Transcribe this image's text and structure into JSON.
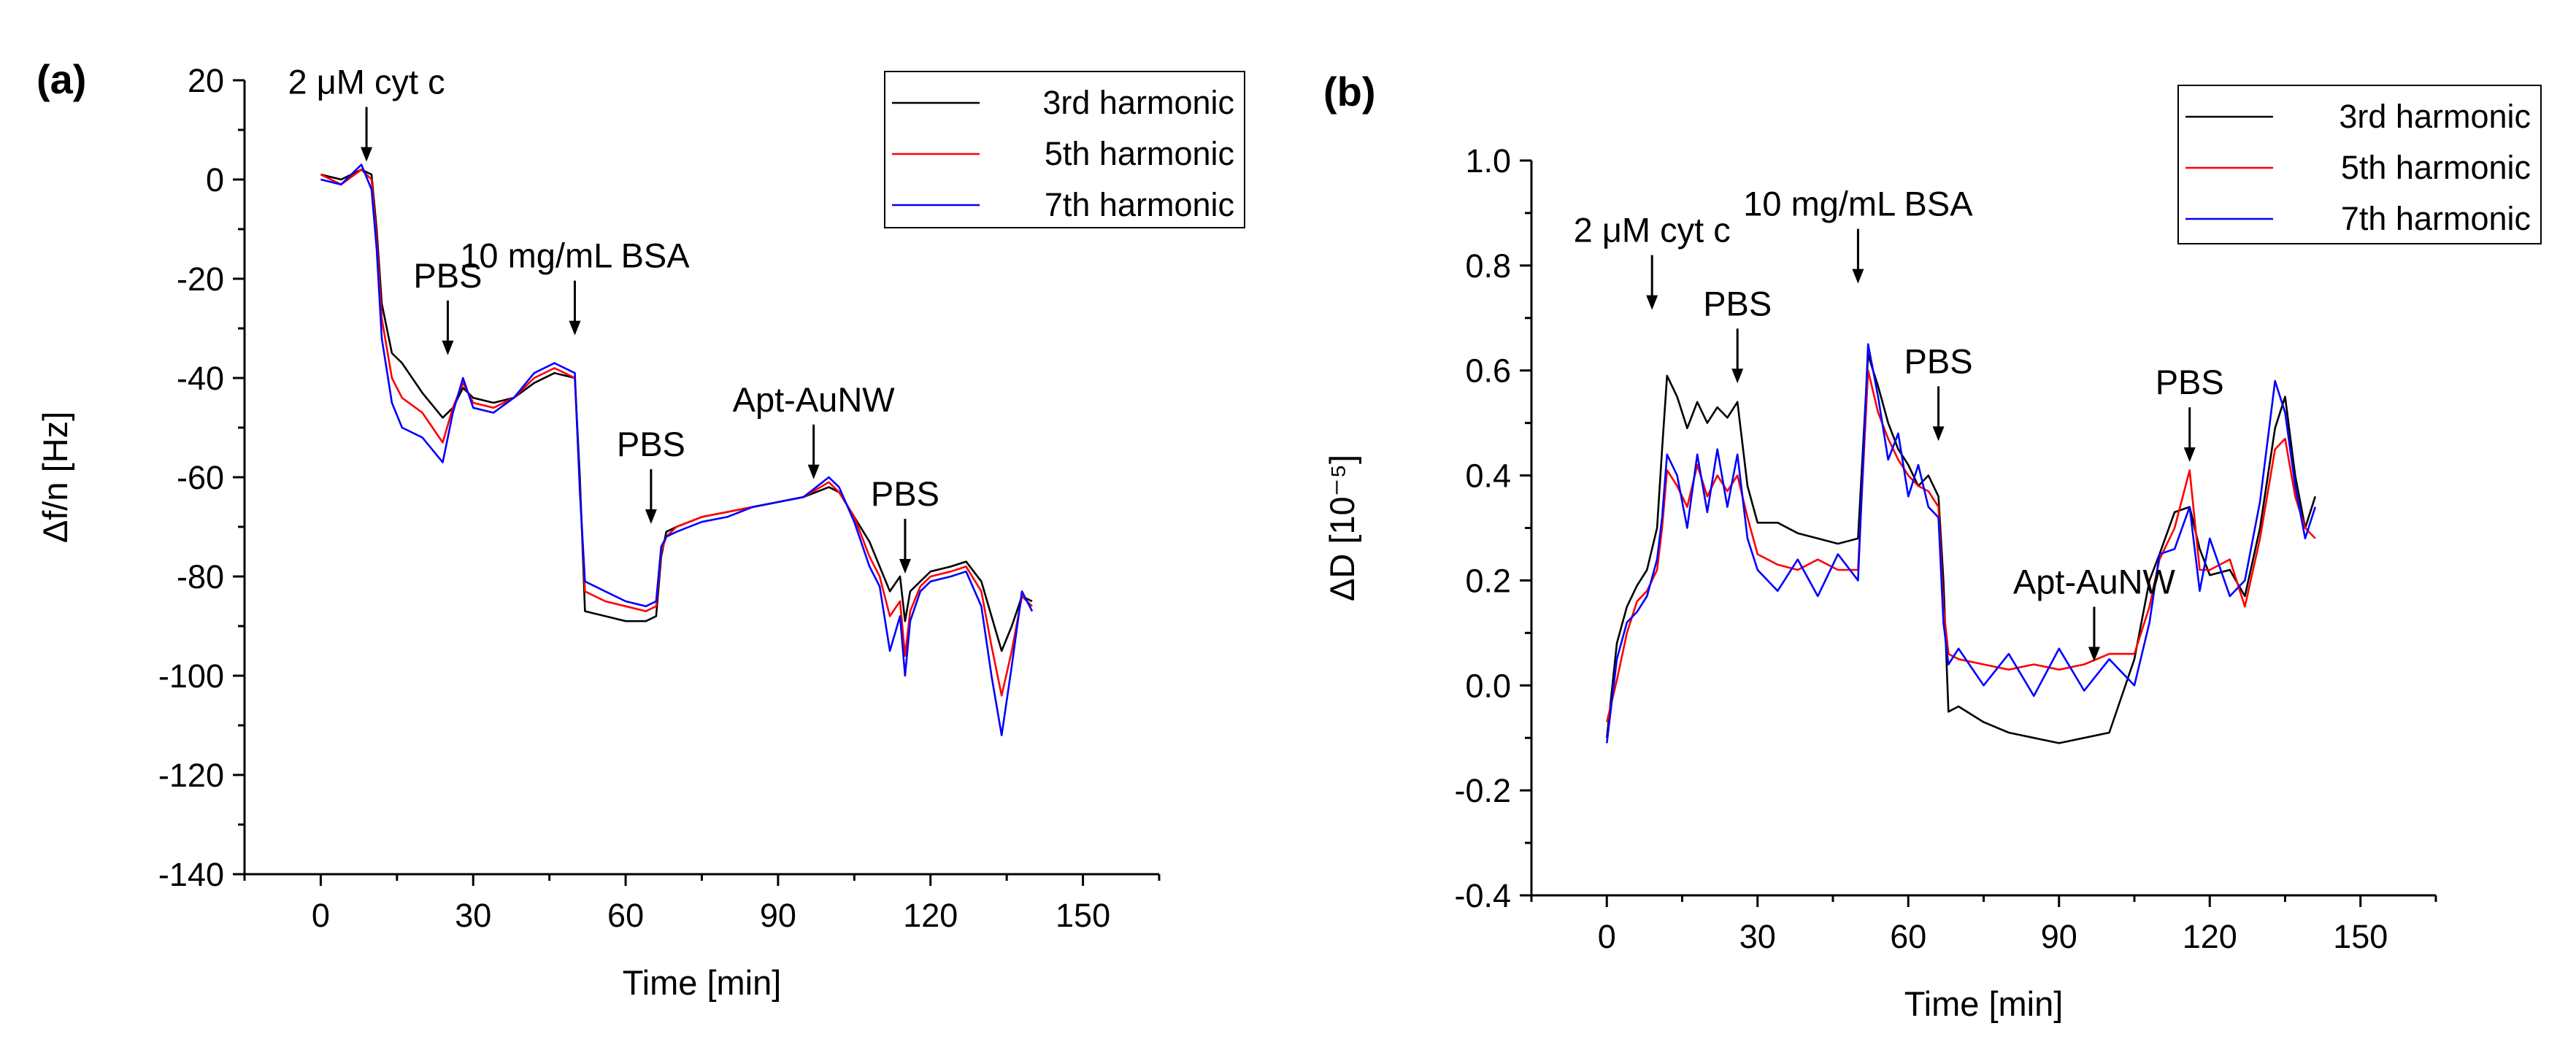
{
  "chart_data": [
    {
      "type": "line",
      "panel_label": "(a)",
      "xlabel": "Time [min]",
      "ylabel": "Δf/n [Hz]",
      "xlim": [
        -15,
        165
      ],
      "ylim": [
        -140,
        20
      ],
      "xticks": [
        0,
        30,
        60,
        90,
        120,
        150
      ],
      "yticks": [
        20,
        0,
        -20,
        -40,
        -60,
        -80,
        -100,
        -120,
        -140
      ],
      "legend": {
        "position": "top-right",
        "entries": [
          "3rd harmonic",
          "5th harmonic",
          "7th harmonic"
        ]
      },
      "annotations": [
        {
          "label": "2 μM cyt c",
          "x": 9,
          "y_tip": 3
        },
        {
          "label": "PBS",
          "x": 25,
          "y_tip": -36
        },
        {
          "label": "10 mg/mL BSA",
          "x": 50,
          "y_tip": -32
        },
        {
          "label": "PBS",
          "x": 65,
          "y_tip": -70
        },
        {
          "label": "Apt-AuNW",
          "x": 97,
          "y_tip": -61
        },
        {
          "label": "PBS",
          "x": 115,
          "y_tip": -80
        }
      ],
      "series": [
        {
          "name": "3rd harmonic",
          "color": "#000000",
          "x": [
            0,
            4,
            8,
            10,
            11,
            12,
            14,
            16,
            20,
            24,
            26,
            28,
            30,
            34,
            38,
            42,
            46,
            50,
            51,
            52,
            56,
            60,
            64,
            66,
            67,
            68,
            70,
            75,
            80,
            85,
            90,
            95,
            100,
            102,
            105,
            108,
            110,
            112,
            114,
            115,
            116,
            118,
            120,
            124,
            127,
            130,
            132,
            134,
            136,
            138,
            140
          ],
          "y": [
            1,
            0,
            2,
            1,
            -10,
            -25,
            -35,
            -37,
            -43,
            -48,
            -46,
            -42,
            -44,
            -45,
            -44,
            -41,
            -39,
            -40,
            -60,
            -87,
            -88,
            -89,
            -89,
            -88,
            -76,
            -71,
            -70,
            -68,
            -67,
            -66,
            -65,
            -64,
            -62,
            -63,
            -68,
            -73,
            -78,
            -83,
            -80,
            -89,
            -83,
            -81,
            -79,
            -78,
            -77,
            -81,
            -88,
            -95,
            -90,
            -84,
            -85
          ]
        },
        {
          "name": "5th harmonic",
          "color": "#ff0000",
          "x": [
            0,
            4,
            8,
            10,
            11,
            12,
            14,
            16,
            20,
            24,
            26,
            28,
            30,
            34,
            38,
            42,
            46,
            50,
            51,
            52,
            56,
            60,
            64,
            66,
            67,
            68,
            70,
            75,
            80,
            85,
            90,
            95,
            100,
            102,
            105,
            108,
            110,
            112,
            114,
            115,
            116,
            118,
            120,
            124,
            127,
            130,
            132,
            134,
            136,
            138,
            140
          ],
          "y": [
            1,
            -1,
            2,
            0,
            -12,
            -28,
            -40,
            -44,
            -47,
            -53,
            -46,
            -41,
            -45,
            -46,
            -44,
            -40,
            -38,
            -40,
            -62,
            -83,
            -85,
            -86,
            -87,
            -86,
            -75,
            -72,
            -70,
            -68,
            -67,
            -66,
            -65,
            -64,
            -61,
            -63,
            -68,
            -76,
            -80,
            -88,
            -85,
            -96,
            -87,
            -82,
            -80,
            -79,
            -78,
            -83,
            -94,
            -104,
            -95,
            -84,
            -86
          ]
        },
        {
          "name": "7th harmonic",
          "color": "#0000ff",
          "x": [
            0,
            4,
            8,
            10,
            11,
            12,
            14,
            16,
            20,
            24,
            26,
            28,
            30,
            34,
            38,
            42,
            46,
            50,
            51,
            52,
            56,
            60,
            64,
            66,
            67,
            68,
            70,
            75,
            80,
            85,
            90,
            95,
            100,
            102,
            105,
            108,
            110,
            112,
            114,
            115,
            116,
            118,
            120,
            124,
            127,
            130,
            132,
            134,
            136,
            138,
            140
          ],
          "y": [
            0,
            -1,
            3,
            -2,
            -14,
            -32,
            -45,
            -50,
            -52,
            -57,
            -47,
            -40,
            -46,
            -47,
            -44,
            -39,
            -37,
            -39,
            -63,
            -81,
            -83,
            -85,
            -86,
            -85,
            -74,
            -72,
            -71,
            -69,
            -68,
            -66,
            -65,
            -64,
            -60,
            -62,
            -69,
            -78,
            -82,
            -95,
            -88,
            -100,
            -89,
            -83,
            -81,
            -80,
            -79,
            -86,
            -100,
            -112,
            -98,
            -83,
            -87
          ]
        }
      ]
    },
    {
      "type": "line",
      "panel_label": "(b)",
      "xlabel": "Time [min]",
      "ylabel": "ΔD [10⁻⁵]",
      "xlim": [
        -15,
        165
      ],
      "ylim": [
        -0.4,
        1.0
      ],
      "xticks": [
        0,
        30,
        60,
        90,
        120,
        150
      ],
      "yticks": [
        "1.0",
        "0.8",
        "0.6",
        "0.4",
        "0.2",
        "0.0",
        "-0.2",
        "-0.4"
      ],
      "legend": {
        "position": "top-right",
        "entries": [
          "3rd harmonic",
          "5th harmonic",
          "7th harmonic"
        ]
      },
      "annotations": [
        {
          "label": "2 μM cyt c",
          "x": 9,
          "y_tip": 0.71
        },
        {
          "label": "PBS",
          "x": 26,
          "y_tip": 0.57
        },
        {
          "label": "10 mg/mL BSA",
          "x": 50,
          "y_tip": 0.76
        },
        {
          "label": "PBS",
          "x": 66,
          "y_tip": 0.46
        },
        {
          "label": "Apt-AuNW",
          "x": 97,
          "y_tip": 0.04
        },
        {
          "label": "PBS",
          "x": 116,
          "y_tip": 0.42
        }
      ],
      "series": [
        {
          "name": "3rd harmonic",
          "color": "#000000",
          "x": [
            0,
            2,
            4,
            6,
            8,
            10,
            11,
            12,
            14,
            16,
            18,
            20,
            22,
            24,
            26,
            28,
            30,
            34,
            38,
            42,
            46,
            50,
            52,
            54,
            56,
            58,
            60,
            62,
            64,
            66,
            67,
            68,
            70,
            75,
            80,
            85,
            90,
            95,
            100,
            105,
            108,
            110,
            113,
            116,
            118,
            120,
            124,
            127,
            130,
            133,
            135,
            137,
            139,
            141
          ],
          "y": [
            -0.1,
            0.08,
            0.15,
            0.19,
            0.22,
            0.3,
            0.45,
            0.59,
            0.55,
            0.49,
            0.54,
            0.5,
            0.53,
            0.51,
            0.54,
            0.38,
            0.31,
            0.31,
            0.29,
            0.28,
            0.27,
            0.28,
            0.63,
            0.57,
            0.5,
            0.45,
            0.42,
            0.38,
            0.4,
            0.36,
            0.2,
            -0.05,
            -0.04,
            -0.07,
            -0.09,
            -0.1,
            -0.11,
            -0.1,
            -0.09,
            0.05,
            0.2,
            0.25,
            0.33,
            0.34,
            0.26,
            0.21,
            0.22,
            0.17,
            0.3,
            0.49,
            0.55,
            0.4,
            0.3,
            0.36
          ]
        },
        {
          "name": "5th harmonic",
          "color": "#ff0000",
          "x": [
            0,
            2,
            4,
            6,
            8,
            10,
            11,
            12,
            14,
            16,
            18,
            20,
            22,
            24,
            26,
            28,
            30,
            34,
            38,
            42,
            46,
            50,
            52,
            54,
            56,
            58,
            60,
            62,
            64,
            66,
            67,
            68,
            70,
            75,
            80,
            85,
            90,
            95,
            100,
            105,
            108,
            110,
            113,
            116,
            118,
            120,
            124,
            127,
            130,
            133,
            135,
            137,
            139,
            141
          ],
          "y": [
            -0.07,
            0.01,
            0.1,
            0.16,
            0.18,
            0.22,
            0.3,
            0.41,
            0.38,
            0.34,
            0.42,
            0.36,
            0.4,
            0.37,
            0.4,
            0.32,
            0.25,
            0.23,
            0.22,
            0.24,
            0.22,
            0.22,
            0.6,
            0.52,
            0.47,
            0.43,
            0.4,
            0.38,
            0.37,
            0.34,
            0.15,
            0.06,
            0.05,
            0.04,
            0.03,
            0.04,
            0.03,
            0.04,
            0.06,
            0.06,
            0.15,
            0.24,
            0.3,
            0.41,
            0.22,
            0.22,
            0.24,
            0.15,
            0.28,
            0.45,
            0.47,
            0.36,
            0.3,
            0.28
          ]
        },
        {
          "name": "7th harmonic",
          "color": "#0000ff",
          "x": [
            0,
            2,
            4,
            6,
            8,
            10,
            11,
            12,
            14,
            16,
            18,
            20,
            22,
            24,
            26,
            28,
            30,
            34,
            38,
            42,
            46,
            50,
            52,
            54,
            56,
            58,
            60,
            62,
            64,
            66,
            67,
            68,
            70,
            75,
            80,
            85,
            90,
            95,
            100,
            105,
            108,
            110,
            113,
            116,
            118,
            120,
            124,
            127,
            130,
            133,
            135,
            137,
            139,
            141
          ],
          "y": [
            -0.11,
            0.05,
            0.12,
            0.14,
            0.17,
            0.24,
            0.32,
            0.44,
            0.4,
            0.3,
            0.44,
            0.33,
            0.45,
            0.34,
            0.44,
            0.28,
            0.22,
            0.18,
            0.24,
            0.17,
            0.25,
            0.2,
            0.65,
            0.55,
            0.43,
            0.48,
            0.36,
            0.42,
            0.34,
            0.32,
            0.12,
            0.04,
            0.07,
            0.0,
            0.06,
            -0.02,
            0.07,
            -0.01,
            0.05,
            0.0,
            0.12,
            0.25,
            0.26,
            0.34,
            0.18,
            0.28,
            0.17,
            0.2,
            0.35,
            0.58,
            0.52,
            0.38,
            0.28,
            0.34
          ]
        }
      ]
    }
  ]
}
